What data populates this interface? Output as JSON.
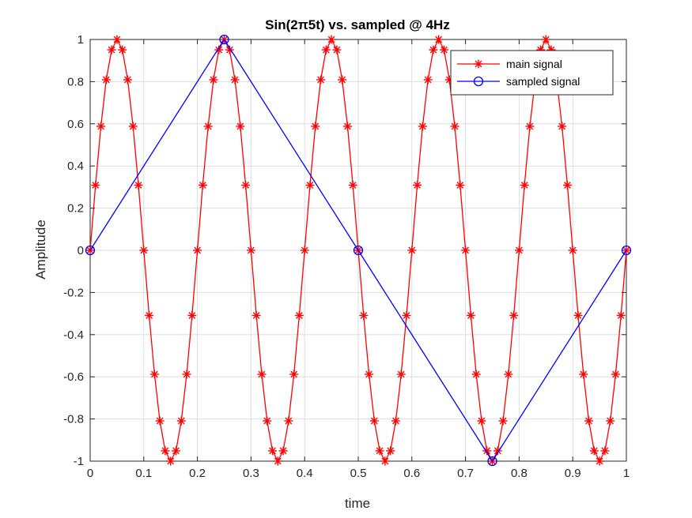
{
  "chart_data": {
    "type": "line",
    "title": "Sin(2π5t) vs. sampled @ 4Hz",
    "xlabel": "time",
    "ylabel": "Amplitude",
    "xlim": [
      0,
      1
    ],
    "ylim": [
      -1,
      1
    ],
    "xticks": [
      0,
      0.1,
      0.2,
      0.3,
      0.4,
      0.5,
      0.6,
      0.7,
      0.8,
      0.9,
      1
    ],
    "xtick_labels": [
      "0",
      "0.1",
      "0.2",
      "0.3",
      "0.4",
      "0.5",
      "0.6",
      "0.7",
      "0.8",
      "0.9",
      "1"
    ],
    "yticks": [
      -1,
      -0.8,
      -0.6,
      -0.4,
      -0.2,
      0,
      0.2,
      0.4,
      0.6,
      0.8,
      1
    ],
    "ytick_labels": [
      "-1",
      "-0.8",
      "-0.6",
      "-0.4",
      "-0.2",
      "0",
      "0.2",
      "0.4",
      "0.6",
      "0.8",
      "1"
    ],
    "grid": true,
    "legend_position": "top-right",
    "series": [
      {
        "name": "main signal",
        "color": "#ff0000",
        "marker": "asterisk",
        "x": [
          0,
          0.01,
          0.02,
          0.03,
          0.04,
          0.05,
          0.06,
          0.07,
          0.08,
          0.09,
          0.1,
          0.11,
          0.12,
          0.13,
          0.14,
          0.15,
          0.16,
          0.17,
          0.18,
          0.19,
          0.2,
          0.21,
          0.22,
          0.23,
          0.24,
          0.25,
          0.26,
          0.27,
          0.28,
          0.29,
          0.3,
          0.31,
          0.32,
          0.33,
          0.34,
          0.35,
          0.36,
          0.37,
          0.38,
          0.39,
          0.4,
          0.41,
          0.42,
          0.43,
          0.44,
          0.45,
          0.46,
          0.47,
          0.48,
          0.49,
          0.5,
          0.51,
          0.52,
          0.53,
          0.54,
          0.55,
          0.56,
          0.57,
          0.58,
          0.59,
          0.6,
          0.61,
          0.62,
          0.63,
          0.64,
          0.65,
          0.66,
          0.67,
          0.68,
          0.69,
          0.7,
          0.71,
          0.72,
          0.73,
          0.74,
          0.75,
          0.76,
          0.77,
          0.78,
          0.79,
          0.8,
          0.81,
          0.82,
          0.83,
          0.84,
          0.85,
          0.86,
          0.87,
          0.88,
          0.89,
          0.9,
          0.91,
          0.92,
          0.93,
          0.94,
          0.95,
          0.96,
          0.97,
          0.98,
          0.99,
          1
        ],
        "y": [
          0,
          0.309,
          0.588,
          0.809,
          0.951,
          1,
          0.951,
          0.809,
          0.588,
          0.309,
          0,
          -0.309,
          -0.588,
          -0.809,
          -0.951,
          -1,
          -0.951,
          -0.809,
          -0.588,
          -0.309,
          0,
          0.309,
          0.588,
          0.809,
          0.951,
          1,
          0.951,
          0.809,
          0.588,
          0.309,
          0,
          -0.309,
          -0.588,
          -0.809,
          -0.951,
          -1,
          -0.951,
          -0.809,
          -0.588,
          -0.309,
          0,
          0.309,
          0.588,
          0.809,
          0.951,
          1,
          0.951,
          0.809,
          0.588,
          0.309,
          0,
          -0.309,
          -0.588,
          -0.809,
          -0.951,
          -1,
          -0.951,
          -0.809,
          -0.588,
          -0.309,
          0,
          0.309,
          0.588,
          0.809,
          0.951,
          1,
          0.951,
          0.809,
          0.588,
          0.309,
          0,
          -0.309,
          -0.588,
          -0.809,
          -0.951,
          -1,
          -0.951,
          -0.809,
          -0.588,
          -0.309,
          0,
          0.309,
          0.588,
          0.809,
          0.951,
          1,
          0.951,
          0.809,
          0.588,
          0.309,
          0,
          -0.309,
          -0.588,
          -0.809,
          -0.951,
          -1,
          -0.951,
          -0.809,
          -0.588,
          -0.309,
          0
        ]
      },
      {
        "name": "sampled signal",
        "color": "#0000ff",
        "marker": "circle",
        "x": [
          0,
          0.25,
          0.5,
          0.75,
          1
        ],
        "y": [
          0,
          1,
          0,
          -1,
          0
        ]
      }
    ]
  }
}
